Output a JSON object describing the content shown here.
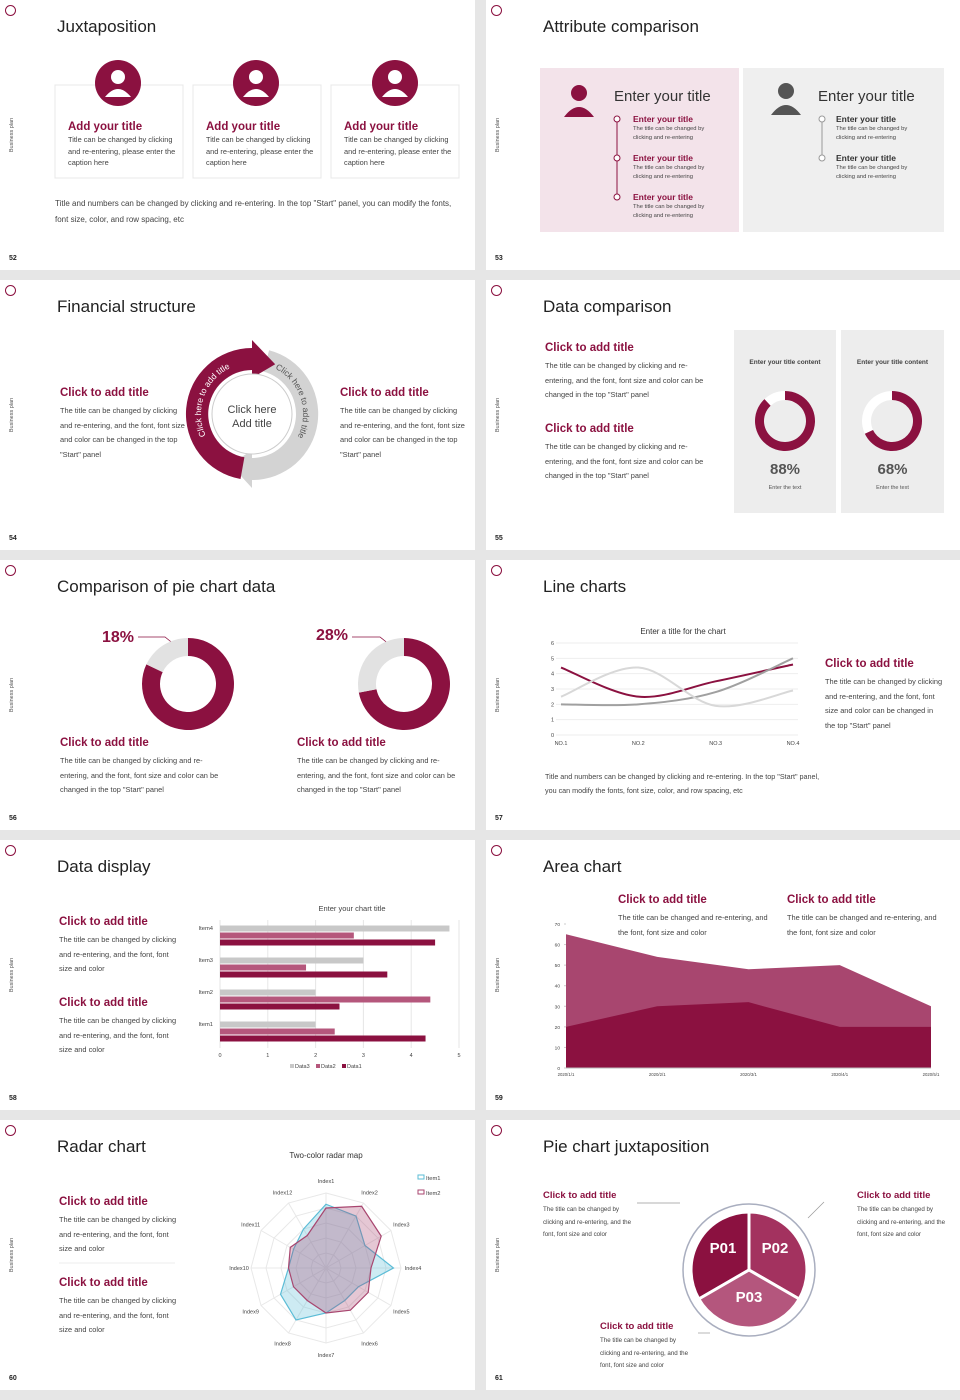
{
  "slides": [
    {
      "number": "52",
      "side_label": "Business plan",
      "title": "Juxtaposition",
      "cards": [
        {
          "title": "Add your title",
          "text": "Title can be changed by clicking and re-entering, please enter the caption here"
        },
        {
          "title": "Add your title",
          "text": "Title can be changed by clicking and re-entering, please enter the caption here"
        },
        {
          "title": "Add your title",
          "text": "Title can be changed by clicking and re-entering, please enter the caption here"
        }
      ],
      "note": "Title and numbers can be changed by clicking and re-entering. In the top \"Start\" panel, you can modify the fonts, font size, color, and row spacing, etc"
    },
    {
      "number": "53",
      "side_label": "Business plan",
      "title": "Attribute comparison",
      "panels": [
        {
          "title": "Enter your title",
          "items": [
            {
              "title": "Enter your title",
              "text": "The title can be changed by clicking and re-entering"
            },
            {
              "title": "Enter your title",
              "text": "The title can be changed by clicking and re-entering"
            },
            {
              "title": "Enter your title",
              "text": "The title can be changed by clicking and re-entering"
            }
          ]
        },
        {
          "title": "Enter your title",
          "items": [
            {
              "title": "Enter your title",
              "text": "The title can be changed by clicking and re-entering"
            },
            {
              "title": "Enter your title",
              "text": "The title can be changed by clicking and re-entering"
            }
          ]
        }
      ]
    },
    {
      "number": "54",
      "side_label": "Business plan",
      "title": "Financial structure",
      "blocks": [
        {
          "title": "Click to add title",
          "text": "The title can be changed by clicking and re-entering, and the font, font size and color can be changed in the top \"Start\" panel"
        },
        {
          "title": "Click to add title",
          "text": "The title can be changed by clicking and re-entering, and the font, font size and color can be changed in the top \"Start\" panel"
        }
      ],
      "arc_labels": [
        "Click here to add title",
        "Click here to add title"
      ],
      "center": [
        "Click here",
        "Add title"
      ]
    },
    {
      "number": "55",
      "side_label": "Business plan",
      "title": "Data comparison",
      "blocks": [
        {
          "title": "Click to add title",
          "text": "The title can be changed by clicking and re-entering, and the font, font size and color can be changed in the top \"Start\" panel"
        },
        {
          "title": "Click to add title",
          "text": "The title can be changed by clicking and re-entering, and the font, font size and color can be changed in the top \"Start\" panel"
        }
      ],
      "donuts": [
        {
          "heading": "Enter your title content",
          "value": 88,
          "value_label": "88%",
          "caption": "Enter the text",
          "color": "#8b1140"
        },
        {
          "heading": "Enter your title content",
          "value": 68,
          "value_label": "68%",
          "caption": "Enter the text",
          "color": "#8b1140"
        }
      ]
    },
    {
      "number": "56",
      "side_label": "Business plan",
      "title": "Comparison of pie chart data",
      "donuts": [
        {
          "value": 18,
          "value_label": "18%",
          "color": "#e2e2e2"
        },
        {
          "value": 28,
          "value_label": "28%",
          "color": "#e2e2e2"
        }
      ],
      "blocks": [
        {
          "title": "Click to add title",
          "text": "The title can be changed by clicking and re-entering, and the font, font size and color can be changed in the top \"Start\" panel"
        },
        {
          "title": "Click to add title",
          "text": "The title can be changed by clicking and re-entering, and the font, font size and color can be changed in the top \"Start\" panel"
        }
      ]
    },
    {
      "number": "57",
      "side_label": "Business plan",
      "title": "Line charts",
      "chart": {
        "type": "line",
        "title": "Enter a title for the chart",
        "categories": [
          "NO.1",
          "NO.2",
          "NO.3",
          "NO.4"
        ],
        "ylim": [
          0,
          6
        ],
        "yticks": [
          0,
          1,
          2,
          3,
          4,
          5,
          6
        ],
        "grid": true,
        "series": [
          {
            "color": "#8b1140",
            "values": [
              4.4,
              2.5,
              3.5,
              4.6
            ]
          },
          {
            "color": "#a0a0a0",
            "values": [
              2,
              2,
              2.8,
              5
            ]
          },
          {
            "color": "#d8d8d8",
            "values": [
              2.5,
              4.4,
              1.9,
              2.9
            ]
          }
        ]
      },
      "block": {
        "title": "Click to add title",
        "text": "The title can be changed by clicking and re-entering, and the font, font size and color can be changed in the top \"Start\" panel"
      },
      "note": "Title and numbers can be changed by clicking and re-entering. In the top \"Start\" panel, you can modify the fonts, font size, color, and row spacing, etc"
    },
    {
      "number": "58",
      "side_label": "Business plan",
      "title": "Data display",
      "blocks": [
        {
          "title": "Click to add title",
          "text": "The title can be changed by clicking and re-entering, and the font, font size and color"
        },
        {
          "title": "Click to add title",
          "text": "The title can be changed by clicking and re-entering, and the font, font size and color"
        }
      ],
      "chart": {
        "type": "bar",
        "orientation": "horizontal",
        "title": "Enter your chart title",
        "categories": [
          "Item1",
          "Item2",
          "Item3",
          "Item4"
        ],
        "xlim": [
          0,
          5
        ],
        "xticks": [
          0,
          1,
          2,
          3,
          4,
          5
        ],
        "grid": true,
        "legend": "bottom",
        "series": [
          {
            "name": "Data3",
            "color": "#c8c8c8",
            "values": [
              2,
              2,
              3,
              4.8
            ]
          },
          {
            "name": "Data2",
            "color": "#b5577c",
            "values": [
              2.4,
              4.4,
              1.8,
              2.8
            ]
          },
          {
            "name": "Data1",
            "color": "#8b1140",
            "values": [
              4.3,
              2.5,
              3.5,
              4.5
            ]
          }
        ]
      }
    },
    {
      "number": "59",
      "side_label": "Business plan",
      "title": "Area chart",
      "blocks": [
        {
          "title": "Click to add title",
          "text": "The title can be changed and re-entering, and the font, font size and color"
        },
        {
          "title": "Click to add title",
          "text": "The title can be changed and re-entering, and the font, font size and color"
        }
      ],
      "chart": {
        "type": "area",
        "x": [
          "2020/1/1",
          "2020/2/1",
          "2020/3/1",
          "2020/4/1",
          "2020/5/1"
        ],
        "ylim": [
          0,
          70
        ],
        "yticks": [
          0,
          10,
          20,
          30,
          40,
          50,
          60,
          70
        ],
        "series": [
          {
            "color": "#a8466f",
            "values": [
              65,
              54,
              48,
              50,
              30
            ]
          },
          {
            "color": "#8b1140",
            "values": [
              20,
              30,
              32,
              20,
              20
            ]
          }
        ]
      }
    },
    {
      "number": "60",
      "side_label": "Business plan",
      "title": "Radar chart",
      "blocks": [
        {
          "title": "Click to add title",
          "text": "The title can be changed by clicking and re-entering, and the font, font size and color"
        },
        {
          "title": "Click to add title",
          "text": "The title can be changed by clicking and re-entering, and the font, font size and color"
        }
      ],
      "chart": {
        "type": "radar",
        "title": "Two-color radar map",
        "categories": [
          "Index1",
          "Index2",
          "Index3",
          "Index4",
          "Index5",
          "Index6",
          "Index7",
          "Index8",
          "Index9",
          "Index10",
          "Index11",
          "Index12"
        ],
        "rlim": [
          0,
          10
        ],
        "legend": "top-right",
        "series": [
          {
            "name": "Item1",
            "color": "#5bbcd6",
            "values": [
              8.5,
              8,
              6,
              9,
              5,
              5,
              6,
              8,
              7,
              5,
              5,
              6
            ]
          },
          {
            "name": "Item2",
            "color": "#a8466f",
            "values": [
              8,
              9.5,
              8.5,
              6,
              6.5,
              6.5,
              6,
              5,
              5,
              5,
              5.5,
              5
            ]
          }
        ]
      }
    },
    {
      "number": "61",
      "side_label": "Business plan",
      "title": "Pie chart juxtaposition",
      "segments": [
        "P01",
        "P02",
        "P03"
      ],
      "blocks": [
        {
          "title": "Click to add title",
          "text": "The title can be changed by clicking and re-entering, and the font, font size and color"
        },
        {
          "title": "Click to add title",
          "text": "The title can be changed by clicking and re-entering, and the font, font size and color"
        },
        {
          "title": "Click to add title",
          "text": "The title can be changed by clicking and re-entering, and the font, font size and color"
        }
      ]
    }
  ]
}
